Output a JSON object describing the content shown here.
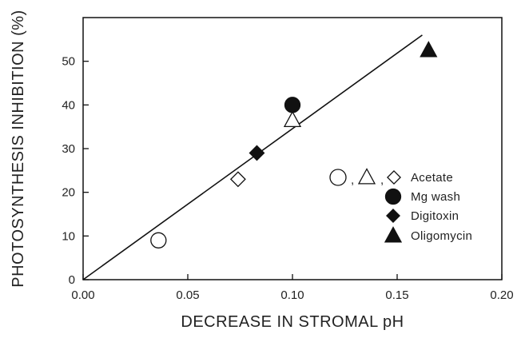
{
  "chart_data": {
    "type": "scatter",
    "xlabel": "DECREASE IN STROMAL pH",
    "ylabel": "PHOTOSYNTHESIS INHIBITION (%)",
    "xlim": [
      0.0,
      0.2
    ],
    "ylim": [
      0,
      60
    ],
    "x_ticks": [
      "0.00",
      "0.05",
      "0.10",
      "0.15",
      "0.20"
    ],
    "y_ticks": [
      "0",
      "10",
      "20",
      "30",
      "40",
      "50"
    ],
    "grid": false,
    "legend_position": "right",
    "series": [
      {
        "name": "Acetate",
        "marker": "circle-open",
        "points": [
          [
            0.036,
            9
          ]
        ]
      },
      {
        "name": "Acetate",
        "marker": "triangle-open",
        "points": [
          [
            0.1,
            36.5
          ]
        ]
      },
      {
        "name": "Acetate",
        "marker": "diamond-open",
        "points": [
          [
            0.074,
            23
          ]
        ]
      },
      {
        "name": "Mg wash",
        "marker": "circle-filled",
        "points": [
          [
            0.1,
            40
          ]
        ]
      },
      {
        "name": "Digitoxin",
        "marker": "diamond-filled",
        "points": [
          [
            0.083,
            29
          ]
        ]
      },
      {
        "name": "Oligomycin",
        "marker": "triangle-filled",
        "points": [
          [
            0.165,
            52.5
          ]
        ]
      }
    ],
    "fit_line": {
      "x": [
        0.0,
        0.162
      ],
      "y": [
        0,
        56
      ]
    },
    "legend": [
      {
        "markers": [
          "circle-open",
          "triangle-open",
          "diamond-open"
        ],
        "label": "Acetate"
      },
      {
        "markers": [
          "circle-filled"
        ],
        "label": "Mg  wash"
      },
      {
        "markers": [
          "diamond-filled"
        ],
        "label": "Digitoxin"
      },
      {
        "markers": [
          "triangle-filled"
        ],
        "label": "Oligomycin"
      }
    ],
    "colors": {
      "ink": "#111111",
      "background": "#ffffff"
    }
  }
}
